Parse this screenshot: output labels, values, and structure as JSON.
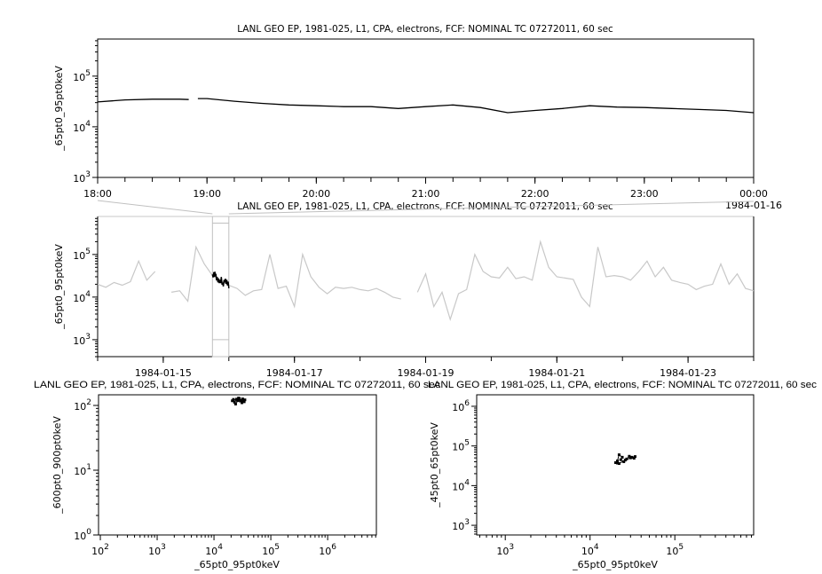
{
  "chart_data": [
    {
      "id": "top",
      "type": "line",
      "title": "LANL GEO EP, 1981-025, L1, CPA, electrons, FCF: NOMINAL TC 07272011, 60 sec",
      "xlabel": "",
      "ylabel": "_65pt0_95pt0keV",
      "x_scale": "time",
      "y_scale": "log",
      "xlim": [
        "1984-01-15T18:00",
        "1984-01-16T00:00"
      ],
      "ylim": [
        1000,
        540000
      ],
      "x_tick_labels": [
        "18:00",
        "19:00",
        "20:00",
        "21:00",
        "22:00",
        "23:00",
        "00:00"
      ],
      "x_tick_values": [
        "1984-01-15T18:00",
        "1984-01-15T19:00",
        "1984-01-15T20:00",
        "1984-01-15T21:00",
        "1984-01-15T22:00",
        "1984-01-15T23:00",
        "1984-01-16T00:00"
      ],
      "x_end_date_label": "1984-01-16",
      "y_ticks": [
        1000,
        10000,
        100000
      ],
      "color": "#000000",
      "x": [
        "1984-01-15T18:00",
        "1984-01-15T18:15",
        "1984-01-15T18:30",
        "1984-01-15T18:45",
        "1984-01-15T18:50",
        "1984-01-15T18:52",
        "1984-01-15T18:55",
        "1984-01-15T19:00",
        "1984-01-15T19:15",
        "1984-01-15T19:30",
        "1984-01-15T19:45",
        "1984-01-15T20:00",
        "1984-01-15T20:15",
        "1984-01-15T20:30",
        "1984-01-15T20:45",
        "1984-01-15T21:00",
        "1984-01-15T21:15",
        "1984-01-15T21:30",
        "1984-01-15T21:45",
        "1984-01-15T22:00",
        "1984-01-15T22:15",
        "1984-01-15T22:30",
        "1984-01-15T22:45",
        "1984-01-15T23:00",
        "1984-01-15T23:15",
        "1984-01-15T23:30",
        "1984-01-15T23:45",
        "1984-01-16T00:00"
      ],
      "y": [
        31000,
        34000,
        35000,
        35000,
        34500,
        null,
        36000,
        36000,
        32000,
        29000,
        27000,
        26000,
        25000,
        25000,
        23000,
        25000,
        27000,
        24000,
        19000,
        21000,
        23000,
        26000,
        24500,
        24000,
        23000,
        22000,
        21000,
        19000
      ]
    },
    {
      "id": "middle",
      "type": "line",
      "title": "LANL GEO EP, 1981-025, L1, CPA, electrons, FCF: NOMINAL TC 07272011, 60 sec",
      "xlabel": "",
      "ylabel": "_65pt0_95pt0keV",
      "x_scale": "time",
      "y_scale": "log",
      "xlim": [
        "1984-01-14T00:00",
        "1984-01-24T00:00"
      ],
      "ylim": [
        400,
        780000
      ],
      "x_tick_labels": [
        "1984-01-15",
        "1984-01-17",
        "1984-01-19",
        "1984-01-21",
        "1984-01-23"
      ],
      "x_tick_values": [
        "1984-01-15T00:00",
        "1984-01-17T00:00",
        "1984-01-19T00:00",
        "1984-01-21T00:00",
        "1984-01-23T00:00"
      ],
      "y_ticks": [
        1000,
        10000,
        100000
      ],
      "color": "#c8c8c8",
      "highlight_color": "#000000",
      "highlight_range": [
        "1984-01-15T18:00",
        "1984-01-16T00:00"
      ],
      "x": [
        "1984-01-14T00:00",
        "1984-01-14T03:00",
        "1984-01-14T06:00",
        "1984-01-14T09:00",
        "1984-01-14T12:00",
        "1984-01-14T15:00",
        "1984-01-14T18:00",
        "1984-01-14T21:00",
        "1984-01-15T00:00",
        "1984-01-15T03:00",
        "1984-01-15T06:00",
        "1984-01-15T09:00",
        "1984-01-15T12:00",
        "1984-01-15T15:00",
        "1984-01-15T18:00",
        "1984-01-15T21:00",
        "1984-01-16T00:00",
        "1984-01-16T03:00",
        "1984-01-16T06:00",
        "1984-01-16T09:00",
        "1984-01-16T12:00",
        "1984-01-16T15:00",
        "1984-01-16T18:00",
        "1984-01-16T21:00",
        "1984-01-17T00:00",
        "1984-01-17T03:00",
        "1984-01-17T06:00",
        "1984-01-17T09:00",
        "1984-01-17T12:00",
        "1984-01-17T15:00",
        "1984-01-17T18:00",
        "1984-01-17T21:00",
        "1984-01-18T00:00",
        "1984-01-18T03:00",
        "1984-01-18T06:00",
        "1984-01-18T09:00",
        "1984-01-18T12:00",
        "1984-01-18T15:00",
        "1984-01-18T18:00",
        "1984-01-18T21:00",
        "1984-01-19T00:00",
        "1984-01-19T03:00",
        "1984-01-19T06:00",
        "1984-01-19T09:00",
        "1984-01-19T12:00",
        "1984-01-19T15:00",
        "1984-01-19T18:00",
        "1984-01-19T21:00",
        "1984-01-20T00:00",
        "1984-01-20T03:00",
        "1984-01-20T06:00",
        "1984-01-20T09:00",
        "1984-01-20T12:00",
        "1984-01-20T15:00",
        "1984-01-20T18:00",
        "1984-01-20T21:00",
        "1984-01-21T00:00",
        "1984-01-21T03:00",
        "1984-01-21T06:00",
        "1984-01-21T09:00",
        "1984-01-21T12:00",
        "1984-01-21T15:00",
        "1984-01-21T18:00",
        "1984-01-21T21:00",
        "1984-01-22T00:00",
        "1984-01-22T03:00",
        "1984-01-22T06:00",
        "1984-01-22T09:00",
        "1984-01-22T12:00",
        "1984-01-22T15:00",
        "1984-01-22T18:00",
        "1984-01-22T21:00",
        "1984-01-23T00:00",
        "1984-01-23T03:00",
        "1984-01-23T06:00",
        "1984-01-23T09:00",
        "1984-01-23T12:00",
        "1984-01-23T15:00",
        "1984-01-23T18:00",
        "1984-01-23T21:00",
        "1984-01-24T00:00"
      ],
      "y": [
        20000,
        17000,
        22000,
        19000,
        23000,
        70000,
        25000,
        40000,
        null,
        13000,
        14000,
        8000,
        150000,
        60000,
        32000,
        24000,
        19000,
        16000,
        11000,
        14000,
        15000,
        100000,
        16000,
        18000,
        6000,
        100000,
        30000,
        17000,
        12000,
        17000,
        16000,
        17000,
        15000,
        14000,
        16000,
        13000,
        10000,
        9000,
        null,
        13000,
        35000,
        6000,
        13000,
        3000,
        12000,
        15000,
        100000,
        40000,
        30000,
        28000,
        50000,
        27000,
        30000,
        25000,
        200000,
        50000,
        30000,
        28000,
        26000,
        10000,
        6000,
        150000,
        30000,
        32000,
        30000,
        25000,
        40000,
        70000,
        30000,
        50000,
        25000,
        22000,
        20000,
        15000,
        18000,
        20000,
        60000,
        20000,
        35000,
        16000,
        14000
      ]
    },
    {
      "id": "bottom-left",
      "type": "scatter",
      "title": "LANL GEO EP, 1981-025, L1, CPA, electrons, FCF: NOMINAL TC 07272011, 60 sec",
      "xlabel": "_65pt0_95pt0keV",
      "ylabel": "_600pt0_900pt0keV",
      "x_scale": "log",
      "y_scale": "log",
      "xlim": [
        93,
        7200000
      ],
      "ylim": [
        1,
        146
      ],
      "x_ticks": [
        100,
        1000,
        10000,
        100000,
        1000000
      ],
      "y_ticks": [
        1,
        10,
        100
      ],
      "color": "#000000",
      "x": [
        21000,
        23000,
        25000,
        27000,
        30000,
        33000,
        35000,
        31000,
        28000,
        24000,
        22000,
        26000,
        29000,
        32000,
        34000
      ],
      "y": [
        118,
        112,
        125,
        130,
        120,
        115,
        122,
        110,
        128,
        105,
        124,
        119,
        117,
        126,
        114
      ]
    },
    {
      "id": "bottom-right",
      "type": "scatter",
      "title": "LANL GEO EP, 1981-025, L1, CPA, electrons, FCF: NOMINAL TC 07272011, 60 sec",
      "xlabel": "_65pt0_95pt0keV",
      "ylabel": "_45pt0_65pt0keV",
      "x_scale": "log",
      "y_scale": "log",
      "xlim": [
        460,
        850000
      ],
      "ylim": [
        570,
        1950000
      ],
      "x_ticks": [
        1000,
        10000,
        100000
      ],
      "y_ticks": [
        1000,
        10000,
        100000,
        1000000
      ],
      "color": "#000000",
      "x": [
        20000,
        21000,
        22000,
        24000,
        23000,
        25000,
        27000,
        29000,
        31000,
        34000,
        33000,
        30000,
        26000,
        22000,
        21000
      ],
      "y": [
        38000,
        42000,
        60000,
        52000,
        45000,
        40000,
        47000,
        55000,
        52000,
        54000,
        49000,
        50000,
        44000,
        36000,
        37000
      ]
    }
  ]
}
